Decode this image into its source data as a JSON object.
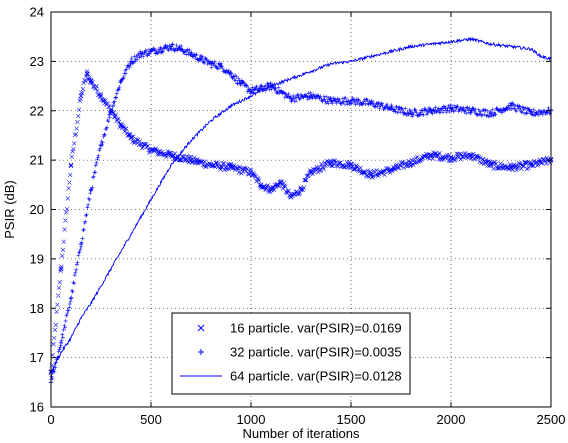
{
  "chart_data": {
    "type": "line",
    "title": "",
    "xlabel": "Number of iterations",
    "ylabel": "PSIR (dB)",
    "xlim": [
      0,
      2500
    ],
    "ylim": [
      16,
      24
    ],
    "xticks": [
      0,
      500,
      1000,
      1500,
      2000,
      2500
    ],
    "yticks": [
      16,
      17,
      18,
      19,
      20,
      21,
      22,
      23,
      24
    ],
    "grid": true,
    "grid_style": "dotted",
    "legend_position": "bottom-center",
    "line_color": "#0000ff",
    "series": [
      {
        "name": "16 particle. var(PSIR)=0.0169",
        "marker": "x",
        "x": [
          0,
          50,
          100,
          150,
          180,
          200,
          250,
          300,
          350,
          400,
          500,
          600,
          700,
          800,
          900,
          1000,
          1050,
          1100,
          1150,
          1200,
          1250,
          1300,
          1400,
          1500,
          1600,
          1700,
          1800,
          1900,
          2000,
          2100,
          2200,
          2300,
          2400,
          2500
        ],
        "y": [
          16.7,
          18.8,
          20.9,
          22.3,
          22.75,
          22.6,
          22.3,
          22.0,
          21.7,
          21.45,
          21.2,
          21.1,
          21.0,
          20.9,
          20.85,
          20.75,
          20.5,
          20.4,
          20.55,
          20.25,
          20.4,
          20.75,
          20.95,
          20.9,
          20.7,
          20.8,
          20.95,
          21.1,
          21.05,
          21.1,
          20.9,
          20.85,
          20.9,
          21.0
        ]
      },
      {
        "name": "32 particle. var(PSIR)=0.0035",
        "marker": "+",
        "x": [
          0,
          50,
          100,
          150,
          200,
          250,
          300,
          350,
          400,
          450,
          500,
          550,
          600,
          650,
          700,
          750,
          800,
          850,
          900,
          950,
          1000,
          1100,
          1200,
          1300,
          1400,
          1500,
          1600,
          1700,
          1800,
          1900,
          2000,
          2100,
          2200,
          2300,
          2400,
          2500
        ],
        "y": [
          16.5,
          17.3,
          18.2,
          19.3,
          20.4,
          21.3,
          22.0,
          22.6,
          23.0,
          23.15,
          23.2,
          23.25,
          23.3,
          23.25,
          23.15,
          23.05,
          22.95,
          22.9,
          22.75,
          22.55,
          22.4,
          22.5,
          22.25,
          22.3,
          22.2,
          22.2,
          22.15,
          22.05,
          21.95,
          22.0,
          22.05,
          22.0,
          21.95,
          22.1,
          21.95,
          22.0
        ]
      },
      {
        "name": "64 particle. var(PSIR)=0.0128",
        "marker": "line",
        "x": [
          0,
          50,
          100,
          150,
          200,
          300,
          400,
          500,
          600,
          700,
          800,
          900,
          1000,
          1100,
          1200,
          1300,
          1400,
          1500,
          1600,
          1700,
          1800,
          1900,
          2000,
          2100,
          2200,
          2300,
          2400,
          2450,
          2500
        ],
        "y": [
          16.7,
          17.1,
          17.4,
          17.8,
          18.1,
          18.8,
          19.5,
          20.2,
          20.9,
          21.4,
          21.8,
          22.1,
          22.3,
          22.5,
          22.65,
          22.8,
          22.95,
          23.0,
          23.1,
          23.2,
          23.3,
          23.35,
          23.4,
          23.45,
          23.35,
          23.3,
          23.25,
          23.1,
          23.05
        ]
      }
    ]
  }
}
